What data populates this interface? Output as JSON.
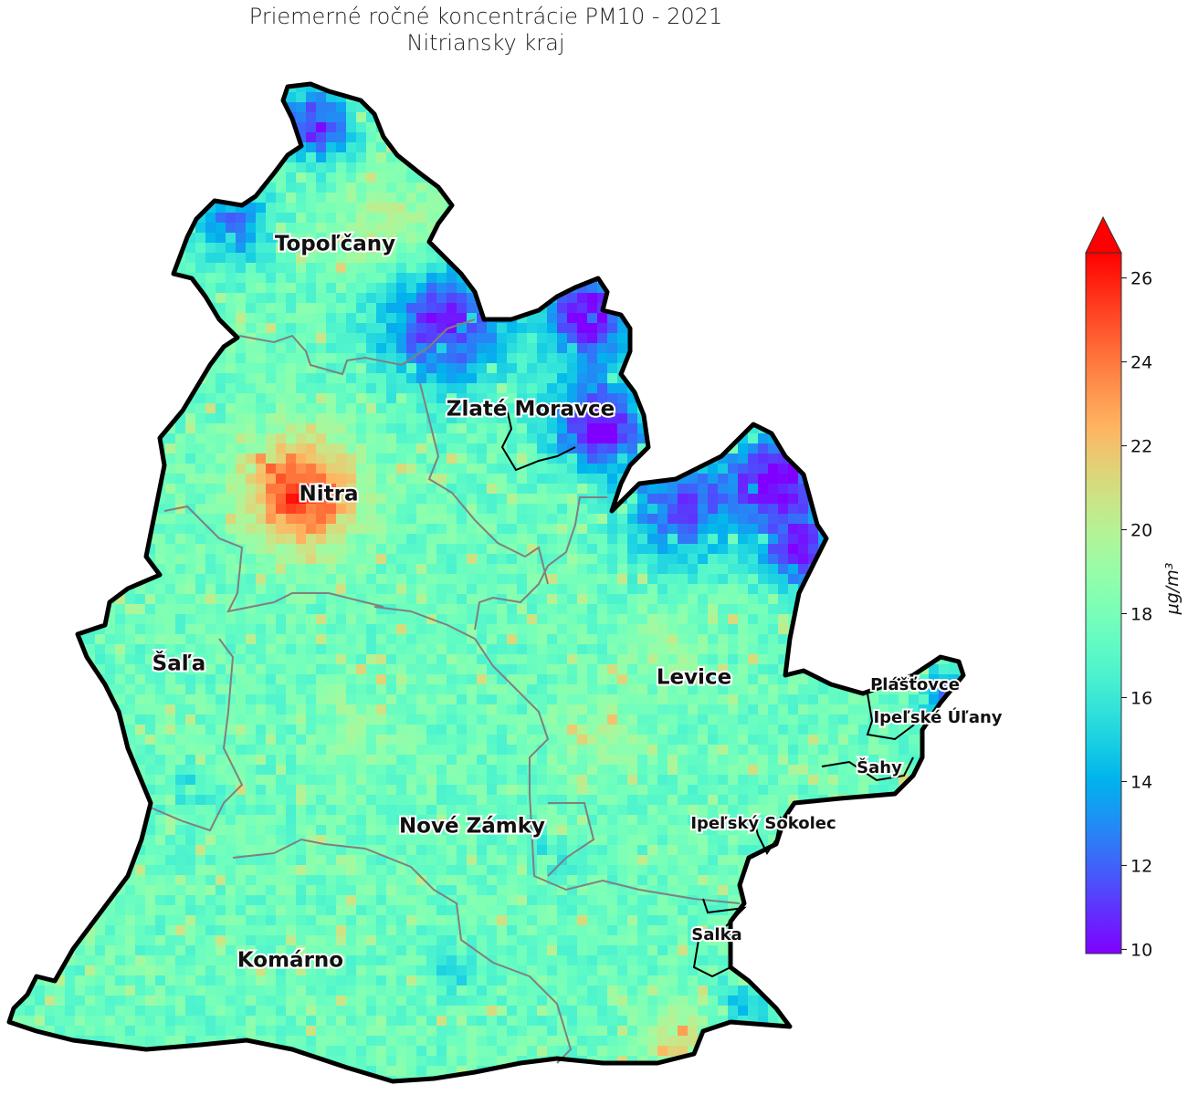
{
  "title": {
    "line1": "Priemerné ročné koncentrácie PM10 - 2021",
    "line2": "Nitriansky kraj"
  },
  "map": {
    "colormap": "rainbow",
    "district_labels": [
      {
        "name": "Topoľčany",
        "size": "large"
      },
      {
        "name": "Zlaté Moravce",
        "size": "large"
      },
      {
        "name": "Nitra",
        "size": "large"
      },
      {
        "name": "Šaľa",
        "size": "large"
      },
      {
        "name": "Levice",
        "size": "large"
      },
      {
        "name": "Nové Zámky",
        "size": "large"
      },
      {
        "name": "Komárno",
        "size": "large"
      },
      {
        "name": "Plášťovce",
        "size": "small"
      },
      {
        "name": "Ipeľské Úľany",
        "size": "small"
      },
      {
        "name": "Šahy",
        "size": "small"
      },
      {
        "name": "Ipeľský Sokolec",
        "size": "small"
      },
      {
        "name": "Salka",
        "size": "small"
      }
    ],
    "outline_color": "#000000",
    "district_border_color": "#808080"
  },
  "colorbar": {
    "label": "μg/m³",
    "vmin": 9.9,
    "vmax": 26.6,
    "extend": "max",
    "ticks": [
      "10",
      "12",
      "14",
      "16",
      "18",
      "20",
      "22",
      "24",
      "26"
    ]
  }
}
